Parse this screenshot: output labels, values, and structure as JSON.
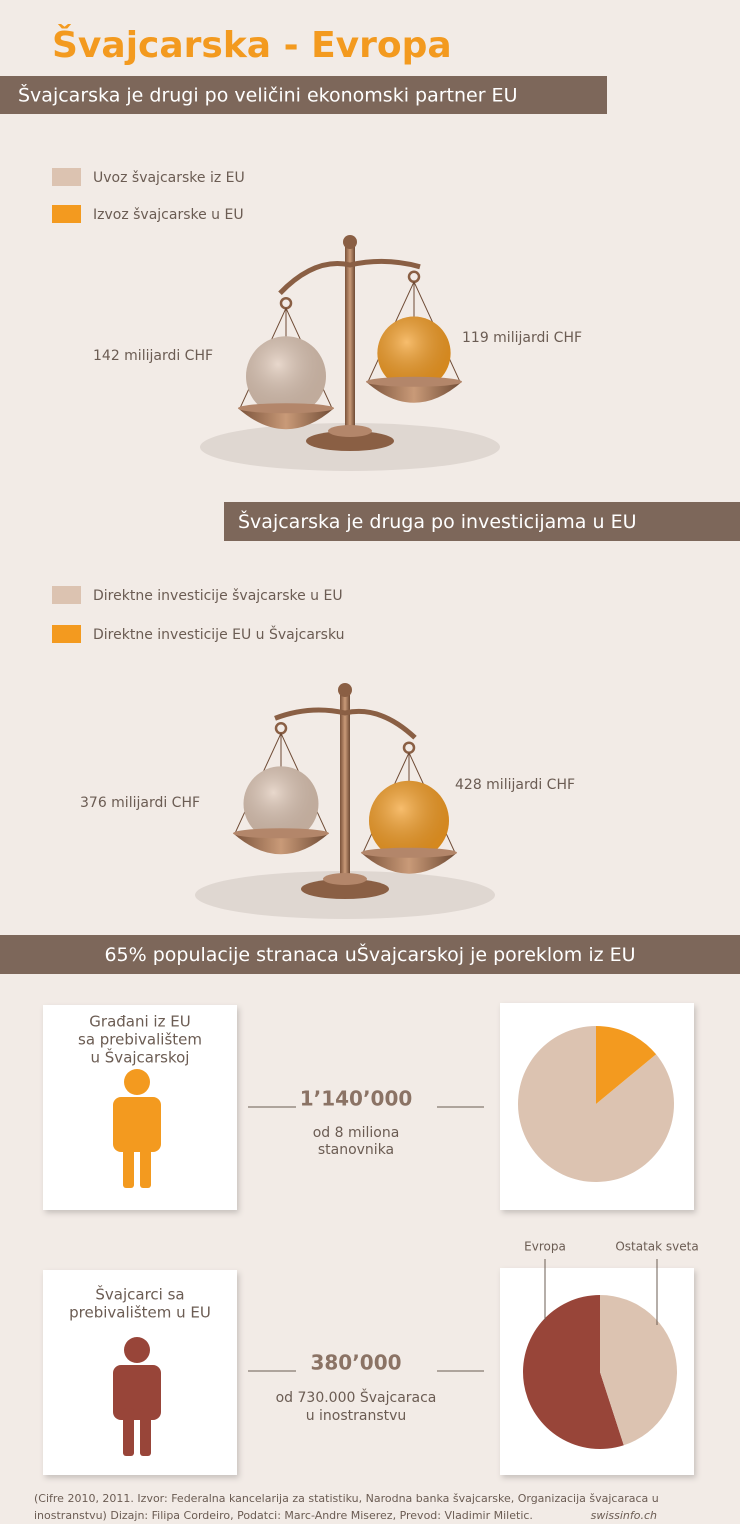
{
  "title": "Švajcarska - Evropa",
  "sections": [
    {
      "heading": "Švajcarska je drugi po veličini ekonomski partner EU"
    },
    {
      "heading": "Švajcarska je druga po investicijama u EU"
    },
    {
      "heading": "65% populacije stranaca uŠvajcarskoj je poreklom iz EU"
    }
  ],
  "chart_data": [
    {
      "type": "scale",
      "series": [
        {
          "name": "Uvoz švajcarske iz EU",
          "color": "#dcc3b1",
          "values": [
            142
          ],
          "value_labels": [
            "142  milijardi CHF"
          ]
        },
        {
          "name": "Izvoz švajcarske u EU",
          "color": "#f39a1f",
          "values": [
            119
          ],
          "value_labels": [
            "119  milijardi CHF"
          ]
        }
      ]
    },
    {
      "type": "scale",
      "series": [
        {
          "name": "Direktne investicije švajcarske u EU",
          "color": "#dcc3b1",
          "values": [
            376
          ],
          "value_labels": [
            "376  milijardi CHF"
          ]
        },
        {
          "name": "Direktne investicije EU u Švajcarsku",
          "color": "#f39a1f",
          "values": [
            428
          ],
          "value_labels": [
            "428  milijardi CHF"
          ]
        }
      ]
    },
    {
      "type": "pie",
      "values": [
        86,
        14
      ],
      "colors": [
        "#dcc3b1",
        "#f39a1f"
      ]
    },
    {
      "type": "pie",
      "categories": [
        "Evropa",
        "Ostatak sveta"
      ],
      "values": [
        55,
        45
      ],
      "colors": [
        "#984539",
        "#dcc3b1"
      ]
    }
  ],
  "cards": [
    {
      "label": [
        "Građani iz EU",
        "sa prebivalištem",
        "u Švajcarskoj"
      ],
      "number": "1’140’000",
      "note": [
        "od 8 miliona",
        "stanovnika"
      ]
    },
    {
      "label": [
        "Švajcarci sa",
        "prebivalištem u EU"
      ],
      "number": "380’000",
      "note": [
        "od 730.000 Švajcaraca",
        "u inostranstvu"
      ]
    }
  ],
  "footer": {
    "lines": [
      "(Cifre 2010, 2011. Izvor: Federalna kancelarija za statistiku, Narodna banka švajcarske, Organizacija švajcaraca u",
      "inostranstvu)  Dizajn: Filipa Cordeiro,  Podatci: Marc-Andre Miserez, Prevod: Vladimir Miletic."
    ],
    "brand": "swissinfo.ch"
  }
}
